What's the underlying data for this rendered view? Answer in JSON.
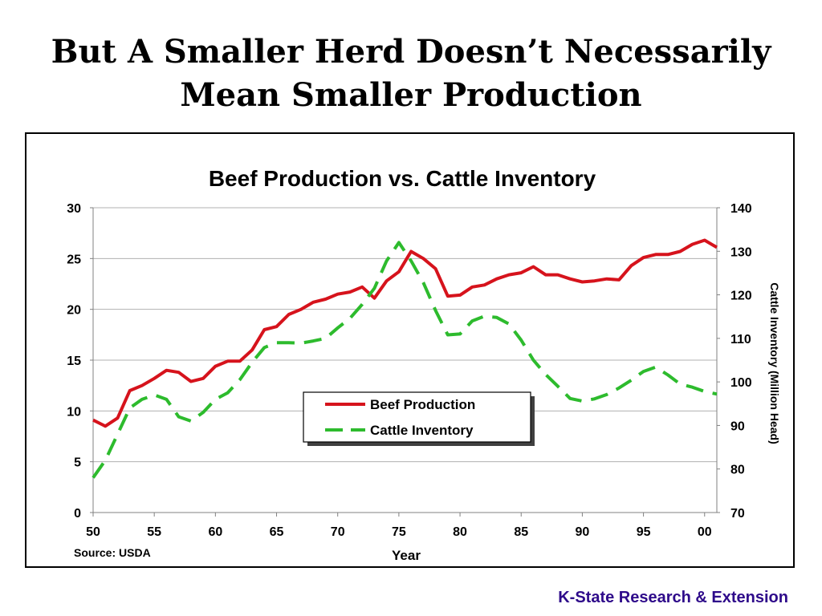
{
  "slide": {
    "title_line1": "But A Smaller Herd Doesn’t Necessarily",
    "title_line2": "Mean Smaller Production",
    "footer": "K-State Research & Extension"
  },
  "colors": {
    "beef": "#d6131c",
    "cattle": "#2dbb2d",
    "footer": "#2e0a8a"
  },
  "chart_data": {
    "type": "line",
    "title": "Beef Production vs. Cattle Inventory",
    "xlabel": "Year",
    "ylabel_right": "Cattle Inventory (Million Head)",
    "source_note": "Source:  USDA",
    "x_ticks": [
      "50",
      "55",
      "60",
      "65",
      "70",
      "75",
      "80",
      "85",
      "90",
      "95",
      "00"
    ],
    "xlim": [
      1950,
      2001
    ],
    "y_left": {
      "lim": [
        0,
        30
      ],
      "ticks": [
        "0",
        "5",
        "10",
        "15",
        "20",
        "25",
        "30"
      ]
    },
    "y_right": {
      "lim": [
        70,
        140
      ],
      "ticks": [
        "70",
        "80",
        "90",
        "100",
        "110",
        "120",
        "130",
        "140"
      ]
    },
    "grid": true,
    "legend_position": "center",
    "series": [
      {
        "name": "Beef Production",
        "axis": "left",
        "style": "solid",
        "x": [
          1950,
          1951,
          1952,
          1953,
          1954,
          1955,
          1956,
          1957,
          1958,
          1959,
          1960,
          1961,
          1962,
          1963,
          1964,
          1965,
          1966,
          1967,
          1968,
          1969,
          1970,
          1971,
          1972,
          1973,
          1974,
          1975,
          1976,
          1977,
          1978,
          1979,
          1980,
          1981,
          1982,
          1983,
          1984,
          1985,
          1986,
          1987,
          1988,
          1989,
          1990,
          1991,
          1992,
          1993,
          1994,
          1995,
          1996,
          1997,
          1998,
          1999,
          2000,
          2001
        ],
        "values": [
          9.1,
          8.5,
          9.3,
          12.0,
          12.5,
          13.2,
          14.0,
          13.8,
          12.9,
          13.2,
          14.4,
          14.9,
          14.9,
          16.0,
          18.0,
          18.3,
          19.5,
          20.0,
          20.7,
          21.0,
          21.5,
          21.7,
          22.2,
          21.1,
          22.8,
          23.7,
          25.7,
          25.0,
          24.0,
          21.3,
          21.4,
          22.2,
          22.4,
          23.0,
          23.4,
          23.6,
          24.2,
          23.4,
          23.4,
          23.0,
          22.7,
          22.8,
          23.0,
          22.9,
          24.3,
          25.1,
          25.4,
          25.4,
          25.7,
          26.4,
          26.8,
          26.1
        ]
      },
      {
        "name": "Cattle Inventory",
        "axis": "right",
        "style": "dashed",
        "x": [
          1950,
          1951,
          1952,
          1953,
          1954,
          1955,
          1956,
          1957,
          1958,
          1959,
          1960,
          1961,
          1962,
          1963,
          1964,
          1965,
          1966,
          1967,
          1968,
          1969,
          1970,
          1971,
          1972,
          1973,
          1974,
          1975,
          1976,
          1977,
          1978,
          1979,
          1980,
          1981,
          1982,
          1983,
          1984,
          1985,
          1986,
          1987,
          1988,
          1989,
          1990,
          1991,
          1992,
          1993,
          1994,
          1995,
          1996,
          1997,
          1998,
          1999,
          2000,
          2001
        ],
        "values": [
          78,
          82,
          88,
          94,
          96,
          97,
          96,
          92,
          91,
          93,
          96,
          97.5,
          100.5,
          104.5,
          107.9,
          109,
          109,
          108.9,
          109.4,
          110,
          112.4,
          114.6,
          117.8,
          121.5,
          127.8,
          132,
          127.8,
          122.8,
          116.4,
          110.8,
          111,
          114,
          115.1,
          114.8,
          113.3,
          109.6,
          105,
          101.7,
          99,
          96.2,
          95.6,
          96.1,
          97.1,
          98.6,
          100.4,
          102.4,
          103.4,
          101.6,
          99.5,
          98.8,
          97.8,
          97.2
        ]
      }
    ]
  }
}
